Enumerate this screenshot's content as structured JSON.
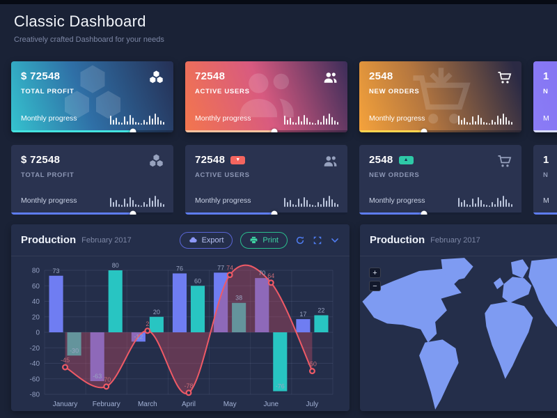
{
  "page": {
    "title": "Classic Dashboard",
    "subtitle": "Creatively crafted Dashboard for your needs"
  },
  "sparkline": [
    13,
    7,
    10,
    4,
    3,
    12,
    5,
    14,
    10,
    4,
    3,
    2,
    7,
    4,
    13,
    9,
    16,
    11,
    6,
    4
  ],
  "cards_top": [
    {
      "value": "$ 72548",
      "label": "TOTAL PROFIT",
      "progress_label": "Monthly progress",
      "progress": 75,
      "accent": "#45e3df",
      "icon": "cubes"
    },
    {
      "value": "72548",
      "label": "ACTIVE USERS",
      "progress_label": "Monthly progress",
      "progress": 55,
      "accent": "#f7c29e",
      "icon": "users"
    },
    {
      "value": "2548",
      "label": "NEW ORDERS",
      "progress_label": "Monthly progress",
      "progress": 40,
      "accent": "#ffd44f",
      "icon": "cart"
    },
    {
      "value": "1",
      "label": "N",
      "progress_label": "M",
      "progress": 62,
      "accent": "#d9def8",
      "icon": "none"
    }
  ],
  "cards_mid": [
    {
      "value": "$ 72548",
      "label": "TOTAL PROFIT",
      "progress_label": "Monthly progress",
      "progress": 75,
      "accent": "#5e7df0",
      "badge": null,
      "icon": "cubes"
    },
    {
      "value": "72548",
      "label": "ACTIVE USERS",
      "progress_label": "Monthly progress",
      "progress": 55,
      "accent": "#5e7df0",
      "badge": {
        "glyph": "▼",
        "color": "#f4655f",
        "text_color": "#ffffff"
      },
      "icon": "users"
    },
    {
      "value": "2548",
      "label": "NEW ORDERS",
      "progress_label": "Monthly progress",
      "progress": 40,
      "accent": "#5e7df0",
      "badge": {
        "glyph": "▲",
        "color": "#2ec9a7",
        "text_color": "#173050"
      },
      "icon": "cart"
    },
    {
      "value": "1",
      "label": "N",
      "progress_label": "M",
      "progress": 70,
      "accent": "#5e7df0",
      "badge": null,
      "icon": "none"
    }
  ],
  "production_chart_panel": {
    "title": "Production",
    "subtitle": "February 2017",
    "export_label": "Export",
    "print_label": "Print"
  },
  "production_map_panel": {
    "title": "Production",
    "subtitle": "February 2017",
    "zoom_in_label": "+",
    "zoom_out_label": "−"
  },
  "chart_data": {
    "type": "bar",
    "categories": [
      "January",
      "February",
      "March",
      "April",
      "May",
      "June",
      "July"
    ],
    "series": [
      {
        "name": "bars-blue",
        "type": "bar",
        "color": "#6f7df2",
        "values": [
          73,
          -63,
          -12,
          76,
          77,
          70,
          17
        ]
      },
      {
        "name": "bars-teal",
        "type": "bar",
        "color": "#28c5c2",
        "values": [
          -30,
          80,
          20,
          60,
          38,
          -76,
          22
        ]
      },
      {
        "name": "trend-line",
        "type": "area-line",
        "color": "#ef5a66",
        "fill": "rgba(190,75,100,0.40)",
        "values": [
          -45,
          -70,
          2,
          -78,
          74,
          64,
          -50
        ]
      }
    ],
    "title": "Production",
    "xlabel": "",
    "ylabel": "",
    "ylim": [
      -80,
      80
    ],
    "yticks": [
      80,
      60,
      40,
      20,
      0,
      -20,
      -40,
      -60,
      -80
    ],
    "grid": true,
    "legend": "none"
  }
}
